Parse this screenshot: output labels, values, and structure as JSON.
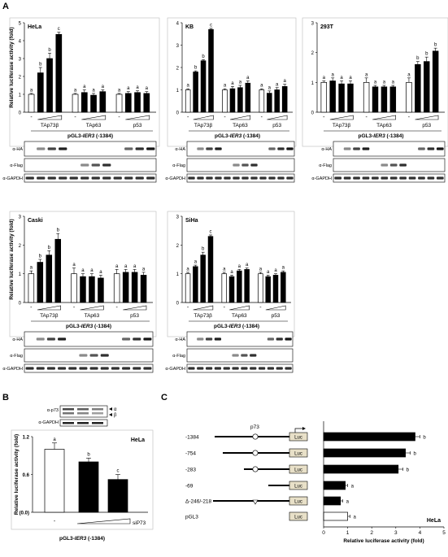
{
  "panel_labels": {
    "A": "A",
    "B": "B",
    "C": "C"
  },
  "common": {
    "ylabel": "Relative luciferase activity (fold)",
    "construct": "pGL3-IER3 (-1384)",
    "construct_prefix": "pGL3-",
    "construct_gene": "IER3",
    "construct_suffix": " (-1384)",
    "dash": "-",
    "groups": [
      "TAp73β",
      "TAp63",
      "p53"
    ],
    "blot_labels": {
      "ha": "α-HA",
      "flag": "α-Flag",
      "gapdh": "α-GAPDH"
    }
  },
  "chart_data": [
    {
      "id": "hela",
      "type": "bar",
      "title": "HeLa",
      "ylim": [
        0,
        5
      ],
      "yticks": [
        0,
        1,
        2,
        3,
        4,
        5
      ],
      "values": [
        1,
        2.2,
        3.0,
        4.35,
        1,
        1.1,
        0.95,
        1.15,
        1,
        1.05,
        1.1,
        1.05
      ],
      "errors": [
        0.05,
        0.3,
        0.3,
        0.12,
        0.05,
        0.15,
        0.1,
        0.1,
        0.05,
        0.1,
        0.1,
        0.1
      ],
      "letters": [
        "a",
        "b",
        "b",
        "c",
        "a",
        "a",
        "a",
        "a",
        "a",
        "a",
        "a",
        "a"
      ]
    },
    {
      "id": "kb",
      "type": "bar",
      "title": "KB",
      "ylim": [
        0,
        4
      ],
      "yticks": [
        0,
        1,
        2,
        3,
        4
      ],
      "values": [
        1,
        1.8,
        2.3,
        3.7,
        1,
        1.05,
        1.1,
        1.3,
        1,
        0.85,
        1,
        1.15
      ],
      "errors": [
        0.05,
        0.05,
        0.05,
        0.05,
        0.05,
        0.1,
        0.1,
        0.1,
        0.05,
        0.1,
        0.1,
        0.1
      ],
      "letters": [
        "a",
        "b",
        "b",
        "c",
        "a",
        "a",
        "a",
        "a",
        "a",
        "a",
        "a",
        "a"
      ]
    },
    {
      "id": "t293",
      "type": "bar",
      "title": "293T",
      "ylim": [
        0,
        3
      ],
      "yticks": [
        0,
        1,
        2,
        3
      ],
      "values": [
        1,
        1.05,
        0.95,
        0.95,
        1,
        0.85,
        0.85,
        0.85,
        1,
        1.6,
        1.7,
        2.05
      ],
      "errors": [
        0.05,
        0.1,
        0.1,
        0.1,
        0.15,
        0.05,
        0.05,
        0.05,
        0.15,
        0.1,
        0.15,
        0.1
      ],
      "letters": [
        "a",
        "a",
        "a",
        "a",
        "a",
        "a",
        "a",
        "a",
        "a",
        "b",
        "b",
        "b"
      ]
    },
    {
      "id": "caski",
      "type": "bar",
      "title": "Caski",
      "ylim": [
        0,
        3
      ],
      "yticks": [
        0,
        1,
        2,
        3
      ],
      "values": [
        1,
        1.4,
        1.65,
        2.2,
        1,
        0.9,
        0.9,
        0.85,
        1,
        1.05,
        1.05,
        0.95
      ],
      "errors": [
        0.1,
        0.1,
        0.15,
        0.2,
        0.2,
        0.1,
        0.1,
        0.1,
        0.15,
        0.1,
        0.1,
        0.1
      ],
      "letters": [
        "a",
        "b",
        "b",
        "b",
        "a",
        "a",
        "a",
        "a",
        "a",
        "a",
        "a",
        "a"
      ]
    },
    {
      "id": "siha",
      "type": "bar",
      "title": "SiHa",
      "ylim": [
        0,
        3
      ],
      "yticks": [
        0,
        1,
        2,
        3
      ],
      "values": [
        1,
        1.25,
        1.65,
        2.3,
        1,
        0.9,
        1.1,
        1.15,
        1,
        0.9,
        0.95,
        1.05
      ],
      "errors": [
        0.05,
        0.05,
        0.1,
        0.05,
        0.05,
        0.05,
        0.05,
        0.05,
        0.05,
        0.05,
        0.05,
        0.05
      ],
      "letters": [
        "a",
        "a",
        "b",
        "c",
        "a",
        "a",
        "a",
        "a",
        "a",
        "a",
        "a",
        "a"
      ]
    },
    {
      "id": "b",
      "type": "bar",
      "title": "HeLa",
      "ylim": [
        0,
        1.2
      ],
      "yticks": [
        0,
        0.6,
        1.2
      ],
      "ytick_labels": [
        "(0.0)",
        "0.6",
        "1.2"
      ],
      "xlabels": [
        "-",
        "siP73"
      ],
      "values": [
        1,
        0.8,
        0.52
      ],
      "errors": [
        0.1,
        0.06,
        0.08
      ],
      "letters": [
        "a",
        "b",
        "c"
      ],
      "blot_labels": {
        "p73": "α-p73",
        "gapdh": "α-GAPDH",
        "alpha": "α",
        "beta": "β"
      }
    },
    {
      "id": "c",
      "type": "bar",
      "orientation": "horizontal",
      "title": "HeLa",
      "xlabel": "Relative luciferase activity (fold)",
      "xlim": [
        0,
        5
      ],
      "xticks": [
        0,
        1,
        2,
        3,
        4,
        5
      ],
      "categories": [
        "-1384",
        "-754",
        "-283",
        "-69",
        "Δ-246/-218",
        "pGL3"
      ],
      "values": [
        3.8,
        3.4,
        3.1,
        0.9,
        0.7,
        1.0
      ],
      "errors": [
        0.2,
        0.2,
        0.2,
        0.1,
        0.1,
        0.1
      ],
      "letters": [
        "b",
        "b",
        "b",
        "a",
        "a",
        "a"
      ],
      "element_label": "p73",
      "luc_label": "Luc"
    }
  ]
}
